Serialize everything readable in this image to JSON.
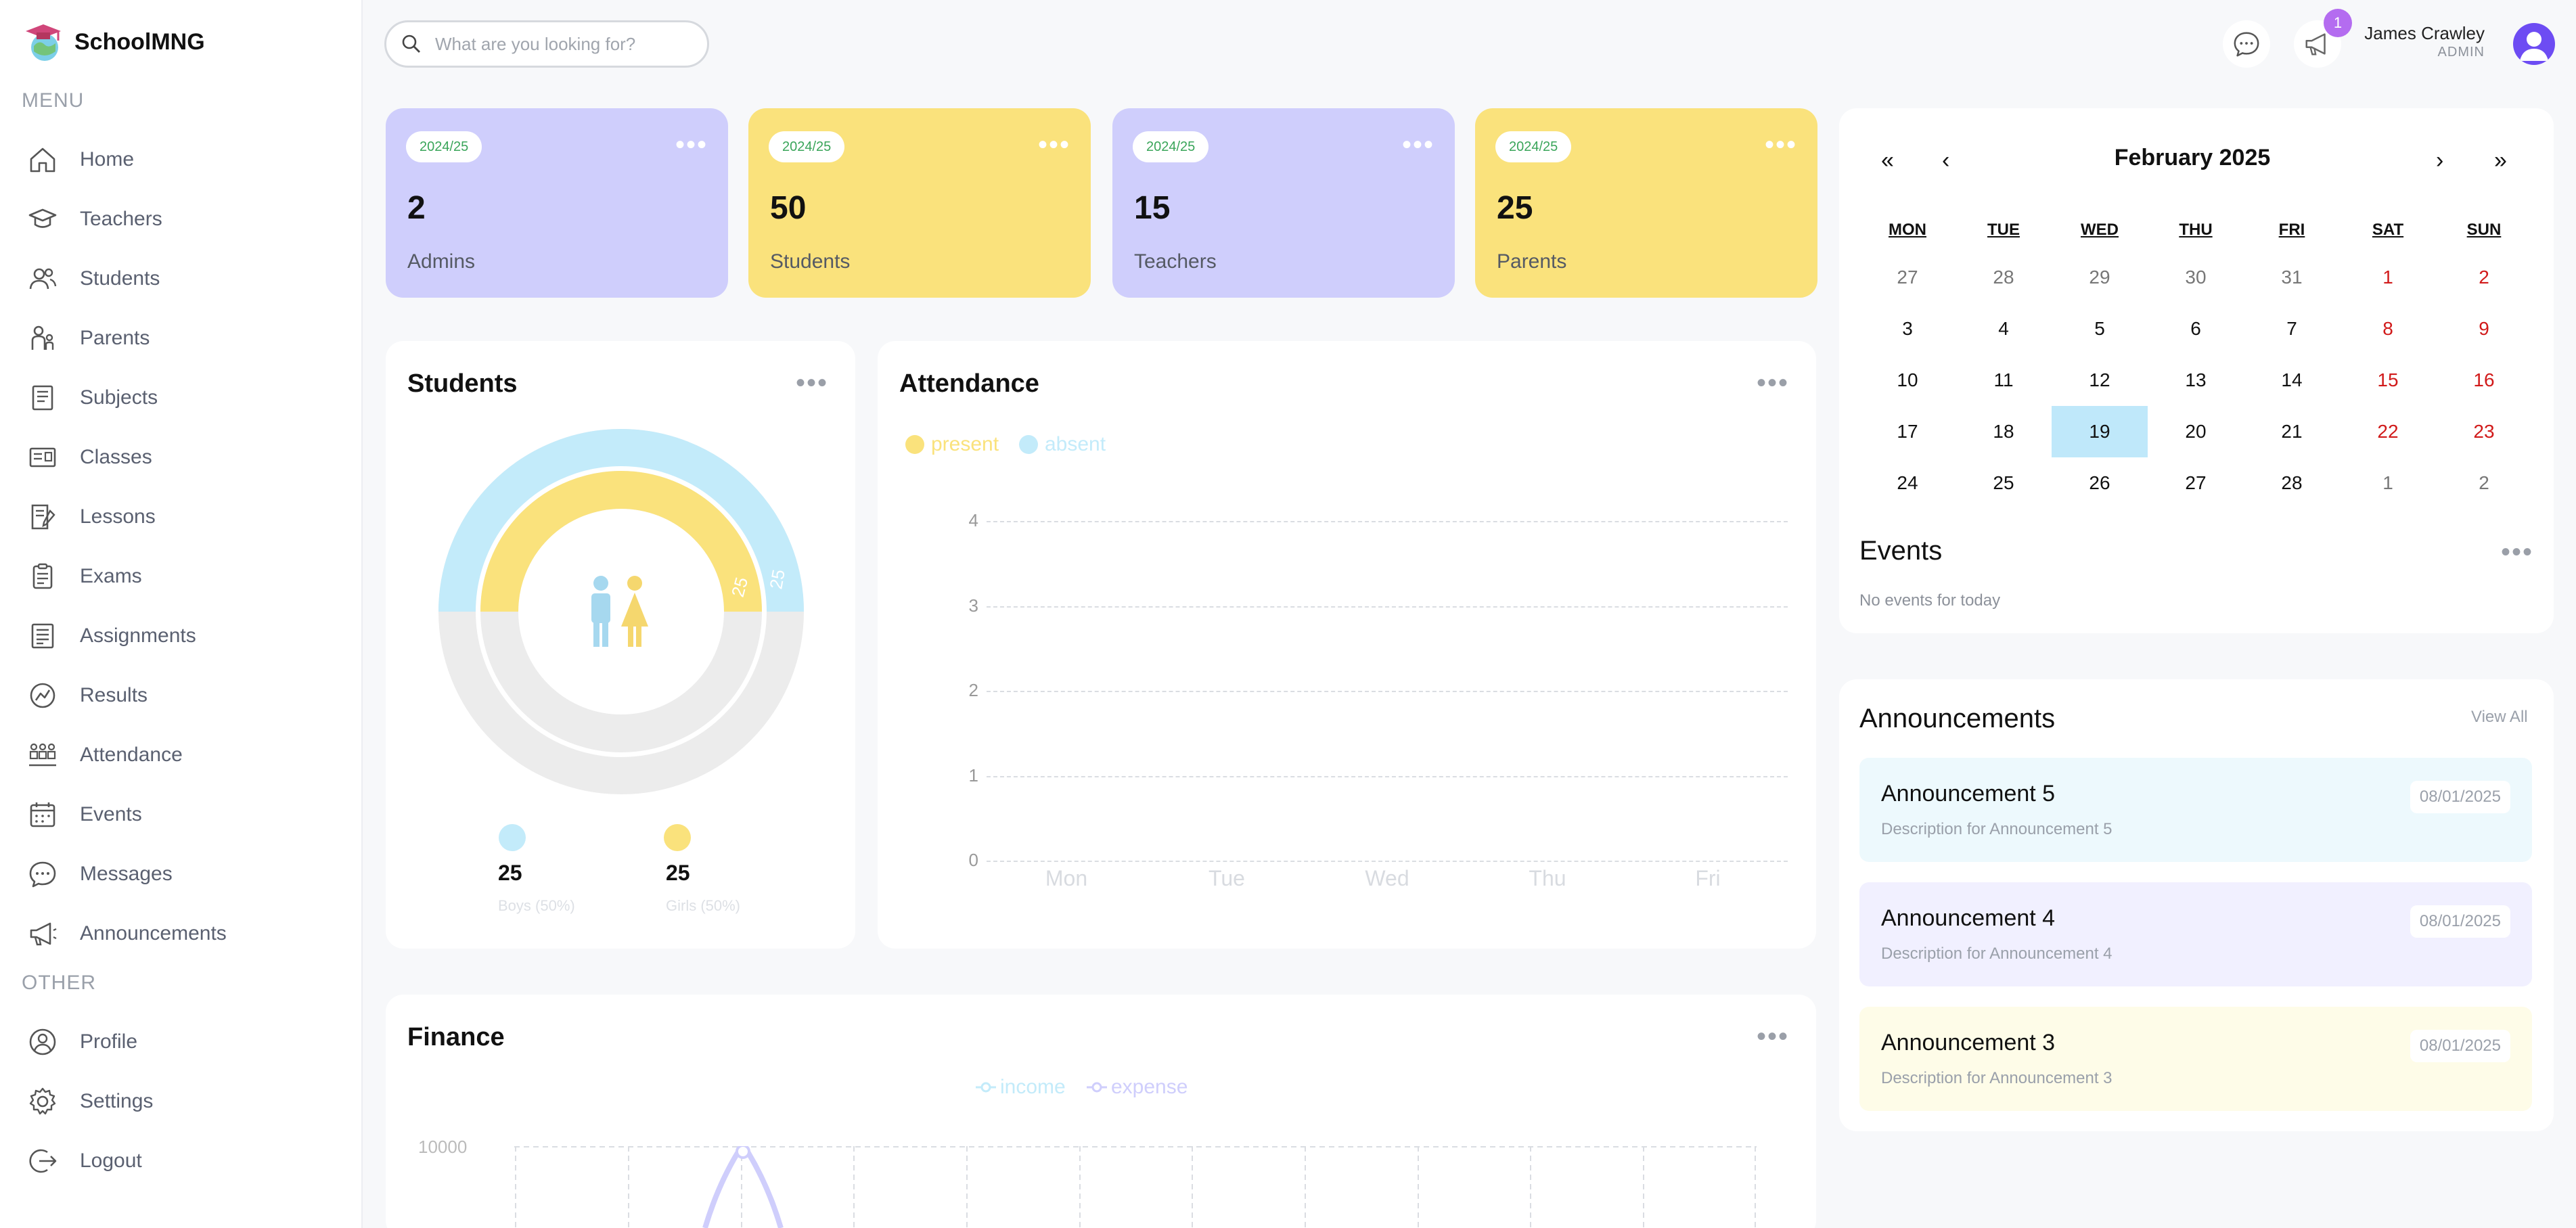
{
  "app": {
    "name": "SchoolMNG"
  },
  "sidebar": {
    "menu_heading": "MENU",
    "other_heading": "OTHER",
    "items": [
      {
        "label": "Home",
        "icon": "home-icon"
      },
      {
        "label": "Teachers",
        "icon": "graduation-cap-icon"
      },
      {
        "label": "Students",
        "icon": "users-icon"
      },
      {
        "label": "Parents",
        "icon": "parent-icon"
      },
      {
        "label": "Subjects",
        "icon": "book-icon"
      },
      {
        "label": "Classes",
        "icon": "class-icon"
      },
      {
        "label": "Lessons",
        "icon": "lesson-icon"
      },
      {
        "label": "Exams",
        "icon": "exam-icon"
      },
      {
        "label": "Assignments",
        "icon": "assignment-icon"
      },
      {
        "label": "Results",
        "icon": "result-icon"
      },
      {
        "label": "Attendance",
        "icon": "attendance-icon"
      },
      {
        "label": "Events",
        "icon": "calendar-icon"
      },
      {
        "label": "Messages",
        "icon": "message-icon"
      },
      {
        "label": "Announcements",
        "icon": "megaphone-icon"
      }
    ],
    "other_items": [
      {
        "label": "Profile",
        "icon": "profile-icon"
      },
      {
        "label": "Settings",
        "icon": "settings-icon"
      },
      {
        "label": "Logout",
        "icon": "logout-icon"
      }
    ]
  },
  "topbar": {
    "search_placeholder": "What are you looking for?",
    "notification_count": "1",
    "user_name": "James Crawley",
    "user_role": "ADMIN"
  },
  "stats": [
    {
      "year": "2024/25",
      "value": "2",
      "label": "Admins",
      "color": "#cfcefc"
    },
    {
      "year": "2024/25",
      "value": "50",
      "label": "Students",
      "color": "#fae27c"
    },
    {
      "year": "2024/25",
      "value": "15",
      "label": "Teachers",
      "color": "#cfcefc"
    },
    {
      "year": "2024/25",
      "value": "25",
      "label": "Parents",
      "color": "#fae27c"
    }
  ],
  "students_panel": {
    "title": "Students",
    "boys_count": "25",
    "boys_label": "Boys (50%)",
    "girls_count": "25",
    "girls_label": "Girls (50%)",
    "ring_outer_label": "25",
    "ring_inner_label": "25",
    "colors": {
      "boys": "#c3ebfa",
      "girls": "#fae27c",
      "track": "#ececec"
    }
  },
  "attendance_panel": {
    "title": "Attendance",
    "legend": {
      "present": "present",
      "absent": "absent"
    }
  },
  "finance_panel": {
    "title": "Finance",
    "legend": {
      "income": "income",
      "expense": "expense"
    },
    "y_top_label": "10000"
  },
  "calendar": {
    "title": "February 2025",
    "nav": {
      "prev_year": "«",
      "prev": "‹",
      "next": "›",
      "next_year": "»"
    },
    "weekdays": [
      "MON",
      "TUE",
      "WED",
      "THU",
      "FRI",
      "SAT",
      "SUN"
    ],
    "weeks": [
      [
        "27",
        "28",
        "29",
        "30",
        "31",
        "1",
        "2"
      ],
      [
        "3",
        "4",
        "5",
        "6",
        "7",
        "8",
        "9"
      ],
      [
        "10",
        "11",
        "12",
        "13",
        "14",
        "15",
        "16"
      ],
      [
        "17",
        "18",
        "19",
        "20",
        "21",
        "22",
        "23"
      ],
      [
        "24",
        "25",
        "26",
        "27",
        "28",
        "1",
        "2"
      ]
    ],
    "today": "19"
  },
  "events": {
    "title": "Events",
    "empty_text": "No events for today"
  },
  "announcements": {
    "title": "Announcements",
    "view_all": "View All",
    "items": [
      {
        "title": "Announcement 5",
        "desc": "Description for Announcement 5",
        "date": "08/01/2025",
        "color": "#edf9fd"
      },
      {
        "title": "Announcement 4",
        "desc": "Description for Announcement 4",
        "date": "08/01/2025",
        "color": "#f1f0ff"
      },
      {
        "title": "Announcement 3",
        "desc": "Description for Announcement 3",
        "date": "08/01/2025",
        "color": "#fefce8"
      }
    ]
  },
  "chart_data": [
    {
      "type": "bar",
      "title": "Attendance",
      "categories": [
        "Mon",
        "Tue",
        "Wed",
        "Thu",
        "Fri"
      ],
      "series": [
        {
          "name": "present",
          "values": [
            0,
            0,
            0,
            0,
            0
          ]
        },
        {
          "name": "absent",
          "values": [
            0,
            0,
            0,
            0,
            0
          ]
        }
      ],
      "yticks": [
        "0",
        "1",
        "2",
        "3",
        "4"
      ],
      "ylim": [
        0,
        4
      ],
      "legend": "top-left",
      "grid": true
    },
    {
      "type": "pie",
      "title": "Students",
      "categories": [
        "Boys",
        "Girls"
      ],
      "values": [
        25,
        25
      ]
    },
    {
      "type": "line",
      "title": "Finance",
      "series": [
        {
          "name": "income",
          "values": []
        },
        {
          "name": "expense",
          "values": []
        }
      ],
      "ytick_top": "10000",
      "legend": "top-center"
    }
  ]
}
